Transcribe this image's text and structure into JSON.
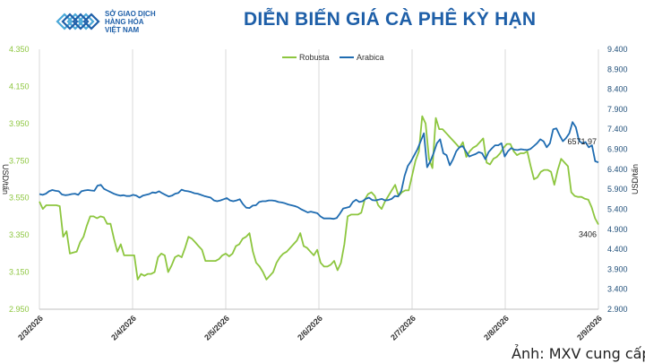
{
  "header": {
    "logo_name": "logo-icon",
    "logo_lines": [
      "SỞ GIAO DỊCH",
      "HÀNG HÓA",
      "VIỆT NAM"
    ],
    "title": "DIỄN BIẾN GIÁ CÀ PHÊ KỲ HẠN"
  },
  "footer": {
    "credit": "Ảnh: MXV cung cấp"
  },
  "chart_data": {
    "type": "line",
    "x_tick_labels": [
      "2/3/2026",
      "2/4/2026",
      "2/5/2026",
      "2/6/2026",
      "2/7/2026",
      "2/8/2026",
      "2/9/2026"
    ],
    "y_left": {
      "label": "USD/tấn",
      "ticks": [
        "2.950",
        "3.150",
        "3.350",
        "3.550",
        "3.750",
        "3.950",
        "4.150",
        "4.350"
      ],
      "range": [
        2950,
        4350
      ]
    },
    "y_right": {
      "label": "USD/tấn",
      "ticks": [
        "2.900",
        "3.400",
        "3.900",
        "4.400",
        "4.900",
        "5.400",
        "5.900",
        "6.400",
        "6.900",
        "7.400",
        "7.900",
        "8.400",
        "8.900",
        "9.400"
      ],
      "range": [
        2900,
        9400
      ]
    },
    "grid": {
      "vertical": true,
      "horizontal": false
    },
    "legend_position": "top-center",
    "colors": {
      "robusta": "#8dc63f",
      "arabica": "#1f6cb1",
      "left_axis": "#8dc63f",
      "right_axis": "#1f4e79"
    },
    "series": [
      {
        "name": "Robusta",
        "axis": "left",
        "values": [
          3530,
          3490,
          3510,
          3510,
          3510,
          3510,
          3505,
          3340,
          3370,
          3250,
          3255,
          3260,
          3310,
          3340,
          3400,
          3450,
          3450,
          3440,
          3450,
          3445,
          3410,
          3410,
          3330,
          3260,
          3300,
          3240,
          3240,
          3240,
          3240,
          3110,
          3140,
          3130,
          3140,
          3140,
          3150,
          3230,
          3250,
          3240,
          3150,
          3185,
          3230,
          3240,
          3230,
          3280,
          3340,
          3330,
          3310,
          3290,
          3270,
          3210,
          3210,
          3210,
          3210,
          3220,
          3240,
          3250,
          3235,
          3250,
          3290,
          3300,
          3330,
          3340,
          3360,
          3260,
          3200,
          3180,
          3150,
          3110,
          3130,
          3150,
          3200,
          3230,
          3250,
          3260,
          3280,
          3300,
          3320,
          3360,
          3290,
          3280,
          3260,
          3240,
          3270,
          3200,
          3180,
          3180,
          3190,
          3210,
          3160,
          3200,
          3300,
          3450,
          3460,
          3460,
          3460,
          3470,
          3540,
          3570,
          3580,
          3560,
          3510,
          3490,
          3530,
          3560,
          3590,
          3620,
          3560,
          3580,
          3590,
          3590,
          3670,
          3750,
          3800,
          3990,
          3950,
          3760,
          3710,
          3980,
          3920,
          3920,
          3900,
          3880,
          3860,
          3840,
          3820,
          3850,
          3770,
          3800,
          3820,
          3830,
          3850,
          3870,
          3740,
          3730,
          3760,
          3770,
          3790,
          3820,
          3840,
          3840,
          3800,
          3780,
          3790,
          3790,
          3800,
          3720,
          3650,
          3660,
          3690,
          3700,
          3700,
          3690,
          3620,
          3700,
          3760,
          3740,
          3720,
          3580,
          3560,
          3555,
          3555,
          3545,
          3540,
          3500,
          3440,
          3406
        ]
      },
      {
        "name": "Arabica",
        "axis": "right",
        "values": [
          5780,
          5760,
          5790,
          5850,
          5880,
          5860,
          5850,
          5770,
          5750,
          5760,
          5780,
          5790,
          5760,
          5850,
          5870,
          5880,
          5870,
          5860,
          5990,
          6010,
          5910,
          5870,
          5830,
          5790,
          5760,
          5740,
          5750,
          5730,
          5730,
          5760,
          5740,
          5690,
          5740,
          5760,
          5780,
          5820,
          5810,
          5850,
          5800,
          5760,
          5720,
          5740,
          5790,
          5810,
          5890,
          5860,
          5850,
          5830,
          5800,
          5790,
          5760,
          5730,
          5710,
          5690,
          5620,
          5600,
          5620,
          5650,
          5680,
          5620,
          5600,
          5620,
          5650,
          5530,
          5440,
          5430,
          5490,
          5500,
          5580,
          5600,
          5600,
          5620,
          5620,
          5610,
          5580,
          5570,
          5550,
          5520,
          5500,
          5480,
          5450,
          5400,
          5360,
          5320,
          5340,
          5320,
          5300,
          5220,
          5170,
          5170,
          5170,
          5160,
          5180,
          5290,
          5420,
          5440,
          5460,
          5580,
          5640,
          5580,
          5600,
          5660,
          5690,
          5630,
          5620,
          5640,
          5660,
          5620,
          5630,
          5660,
          5730,
          5720,
          5860,
          6230,
          6480,
          6600,
          6750,
          6900,
          7100,
          7300,
          6450,
          6600,
          6800,
          7050,
          7150,
          6800,
          6750,
          6500,
          6650,
          6850,
          6950,
          6980,
          6850,
          6720,
          6750,
          6780,
          6830,
          6800,
          6650,
          6830,
          6920,
          7000,
          7000,
          7050,
          6720,
          6850,
          6930,
          6890,
          6880,
          6900,
          6890,
          6880,
          6910,
          6980,
          7050,
          7150,
          7100,
          6950,
          7050,
          7400,
          7420,
          7250,
          7100,
          7180,
          7300,
          7580,
          7450,
          7110,
          7050,
          7080,
          6950,
          7000,
          6600,
          6571.97
        ]
      }
    ],
    "annotations": [
      {
        "series": "Arabica",
        "text": "6571.97"
      },
      {
        "series": "Robusta",
        "text": "3406"
      }
    ]
  }
}
